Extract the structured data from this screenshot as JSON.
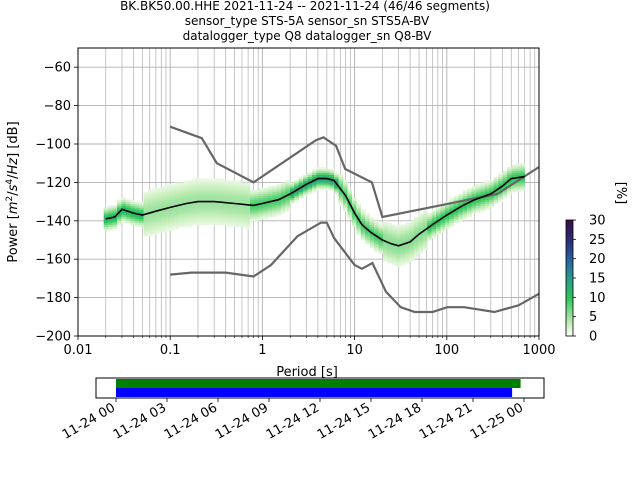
{
  "chart_data": {
    "type": "heatmap",
    "title_lines": [
      "BK.BK50.00.HHE   2021-11-24 -- 2021-11-24  (46/46 segments)",
      "sensor_type STS-5A sensor_sn STS5A-BV",
      "datalogger_type Q8 datalogger_sn Q8-BV"
    ],
    "xlabel": "Period [s]",
    "ylabel_main": "Power [",
    "ylabel_tail": "] [dB]",
    "xscale": "log",
    "xlim": [
      0.01,
      1000
    ],
    "ylim": [
      -200,
      -50
    ],
    "x_ticks": [
      {
        "v": 0.01,
        "label": "0.01"
      },
      {
        "v": 0.1,
        "label": "0.1"
      },
      {
        "v": 1,
        "label": "1"
      },
      {
        "v": 10,
        "label": "10"
      },
      {
        "v": 100,
        "label": "100"
      },
      {
        "v": 1000,
        "label": "1000"
      }
    ],
    "y_ticks": [
      {
        "v": -60,
        "label": "−60"
      },
      {
        "v": -80,
        "label": "−80"
      },
      {
        "v": -100,
        "label": "−100"
      },
      {
        "v": -120,
        "label": "−120"
      },
      {
        "v": -140,
        "label": "−140"
      },
      {
        "v": -160,
        "label": "−160"
      },
      {
        "v": -180,
        "label": "−180"
      },
      {
        "v": -200,
        "label": "−200"
      }
    ],
    "grid": true,
    "mean_curve": [
      [
        0.02,
        -139
      ],
      [
        0.025,
        -138
      ],
      [
        0.03,
        -134
      ],
      [
        0.04,
        -136
      ],
      [
        0.05,
        -137
      ],
      [
        0.07,
        -135
      ],
      [
        0.1,
        -133
      ],
      [
        0.15,
        -131
      ],
      [
        0.2,
        -130
      ],
      [
        0.3,
        -130
      ],
      [
        0.5,
        -131
      ],
      [
        0.8,
        -132
      ],
      [
        1,
        -131
      ],
      [
        1.5,
        -129
      ],
      [
        2,
        -126
      ],
      [
        3,
        -121
      ],
      [
        4,
        -118
      ],
      [
        5,
        -118
      ],
      [
        6,
        -119
      ],
      [
        8,
        -127
      ],
      [
        10,
        -136
      ],
      [
        12,
        -142
      ],
      [
        15,
        -146
      ],
      [
        20,
        -150
      ],
      [
        25,
        -152
      ],
      [
        30,
        -153
      ],
      [
        40,
        -151
      ],
      [
        50,
        -147
      ],
      [
        70,
        -142
      ],
      [
        100,
        -137
      ],
      [
        150,
        -132
      ],
      [
        200,
        -129
      ],
      [
        300,
        -126
      ],
      [
        400,
        -122
      ],
      [
        500,
        -118
      ],
      [
        700,
        -117
      ]
    ],
    "nhnm": [
      [
        0.1,
        -91
      ],
      [
        0.22,
        -97
      ],
      [
        0.32,
        -110
      ],
      [
        0.8,
        -120
      ],
      [
        3.8,
        -98
      ],
      [
        4.6,
        -96.5
      ],
      [
        6.3,
        -101
      ],
      [
        7.9,
        -113
      ],
      [
        15.4,
        -120
      ],
      [
        20,
        -138
      ],
      [
        354.8,
        -126
      ],
      [
        1000,
        -112
      ]
    ],
    "nlnm": [
      [
        0.1,
        -168
      ],
      [
        0.17,
        -167
      ],
      [
        0.4,
        -167
      ],
      [
        0.8,
        -169
      ],
      [
        1.24,
        -163
      ],
      [
        2.4,
        -148
      ],
      [
        4.3,
        -141
      ],
      [
        5,
        -141
      ],
      [
        6,
        -149
      ],
      [
        10,
        -163
      ],
      [
        12,
        -165
      ],
      [
        15.6,
        -162
      ],
      [
        21.9,
        -177
      ],
      [
        31.6,
        -185
      ],
      [
        45,
        -187.5
      ],
      [
        70,
        -187.5
      ],
      [
        101,
        -185
      ],
      [
        154,
        -185
      ],
      [
        328,
        -187.5
      ],
      [
        600,
        -184
      ],
      [
        1000,
        -178
      ]
    ],
    "colorbar": {
      "label": "[%]",
      "min": 0,
      "max": 30,
      "ticks": [
        0,
        5,
        10,
        15,
        20,
        25,
        30
      ],
      "colormap": "pqlx"
    },
    "timeline": {
      "ticks": [
        "11-24 00",
        "11-24 03",
        "11-24 06",
        "11-24 09",
        "11-24 12",
        "11-24 15",
        "11-24 18",
        "11-24 21",
        "11-25 00"
      ],
      "bars": [
        {
          "color": "#008000",
          "start_hour": 0,
          "end_hour": 23.8
        },
        {
          "color": "#0000ff",
          "start_hour": 0,
          "end_hour": 23.3
        }
      ]
    },
    "colors": {
      "mean": "#000000",
      "noise_models": "#666666",
      "grid": "#b0b0b0"
    }
  }
}
